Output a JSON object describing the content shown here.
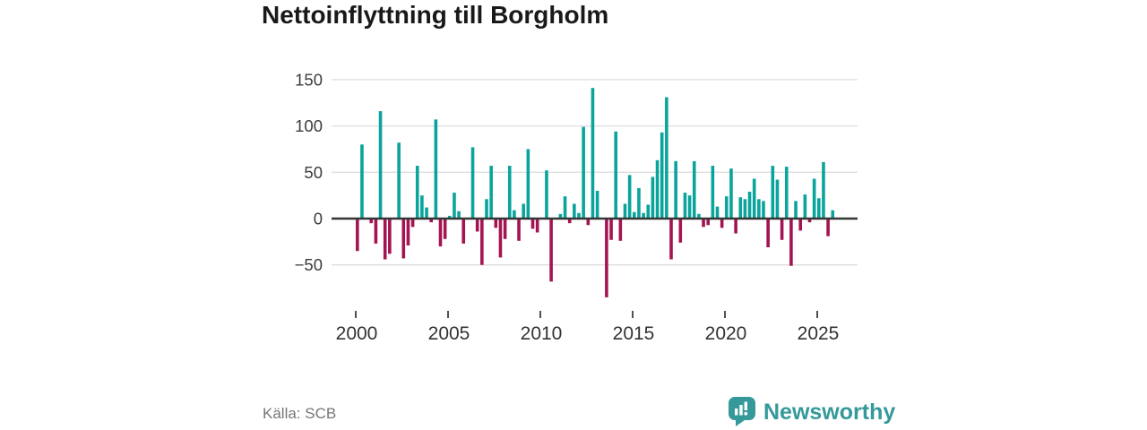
{
  "chart_data": {
    "type": "bar",
    "title": "Nettoinflyttning till Borgholm",
    "source": "Källa: SCB",
    "frequency": "quarterly",
    "start": "2000 Q1",
    "end": "2025 Q4",
    "x_tick_labels": [
      "2000",
      "2005",
      "2010",
      "2015",
      "2020",
      "2025"
    ],
    "y_ticks": [
      150,
      100,
      50,
      0,
      -50
    ],
    "ylim": [
      -90,
      150
    ],
    "grid": true,
    "values": [
      -35,
      80,
      0,
      -5,
      -27,
      116,
      -44,
      -38,
      0,
      82,
      -43,
      -29,
      -9,
      57,
      25,
      12,
      -4,
      107,
      -30,
      -22,
      3,
      28,
      8,
      -27,
      0,
      77,
      -14,
      -50,
      21,
      57,
      -10,
      -42,
      -22,
      57,
      9,
      -24,
      16,
      75,
      -11,
      -15,
      0,
      52,
      -68,
      0,
      5,
      24,
      -5,
      16,
      6,
      99,
      -7,
      141,
      30,
      0,
      -85,
      -23,
      94,
      -24,
      16,
      47,
      7,
      33,
      6,
      15,
      45,
      63,
      93,
      131,
      -44,
      62,
      -26,
      28,
      25,
      62,
      5,
      -9,
      -7,
      57,
      13,
      -10,
      24,
      54,
      -16,
      23,
      21,
      29,
      43,
      21,
      19,
      -31,
      57,
      42,
      -23,
      56,
      -51,
      19,
      -13,
      26,
      -4,
      43,
      22,
      61,
      -19,
      9
    ],
    "positive_color": "#0aa49c",
    "negative_color": "#a41452",
    "axis_text_color": "#3d3d3d",
    "gridline_color": "#dedede",
    "zero_line_color": "#363636"
  },
  "logo": {
    "wordmark": "Newsworthy",
    "brand_color": "#35999a",
    "icon": "speech-bubble-bar-chart-exclamation"
  }
}
